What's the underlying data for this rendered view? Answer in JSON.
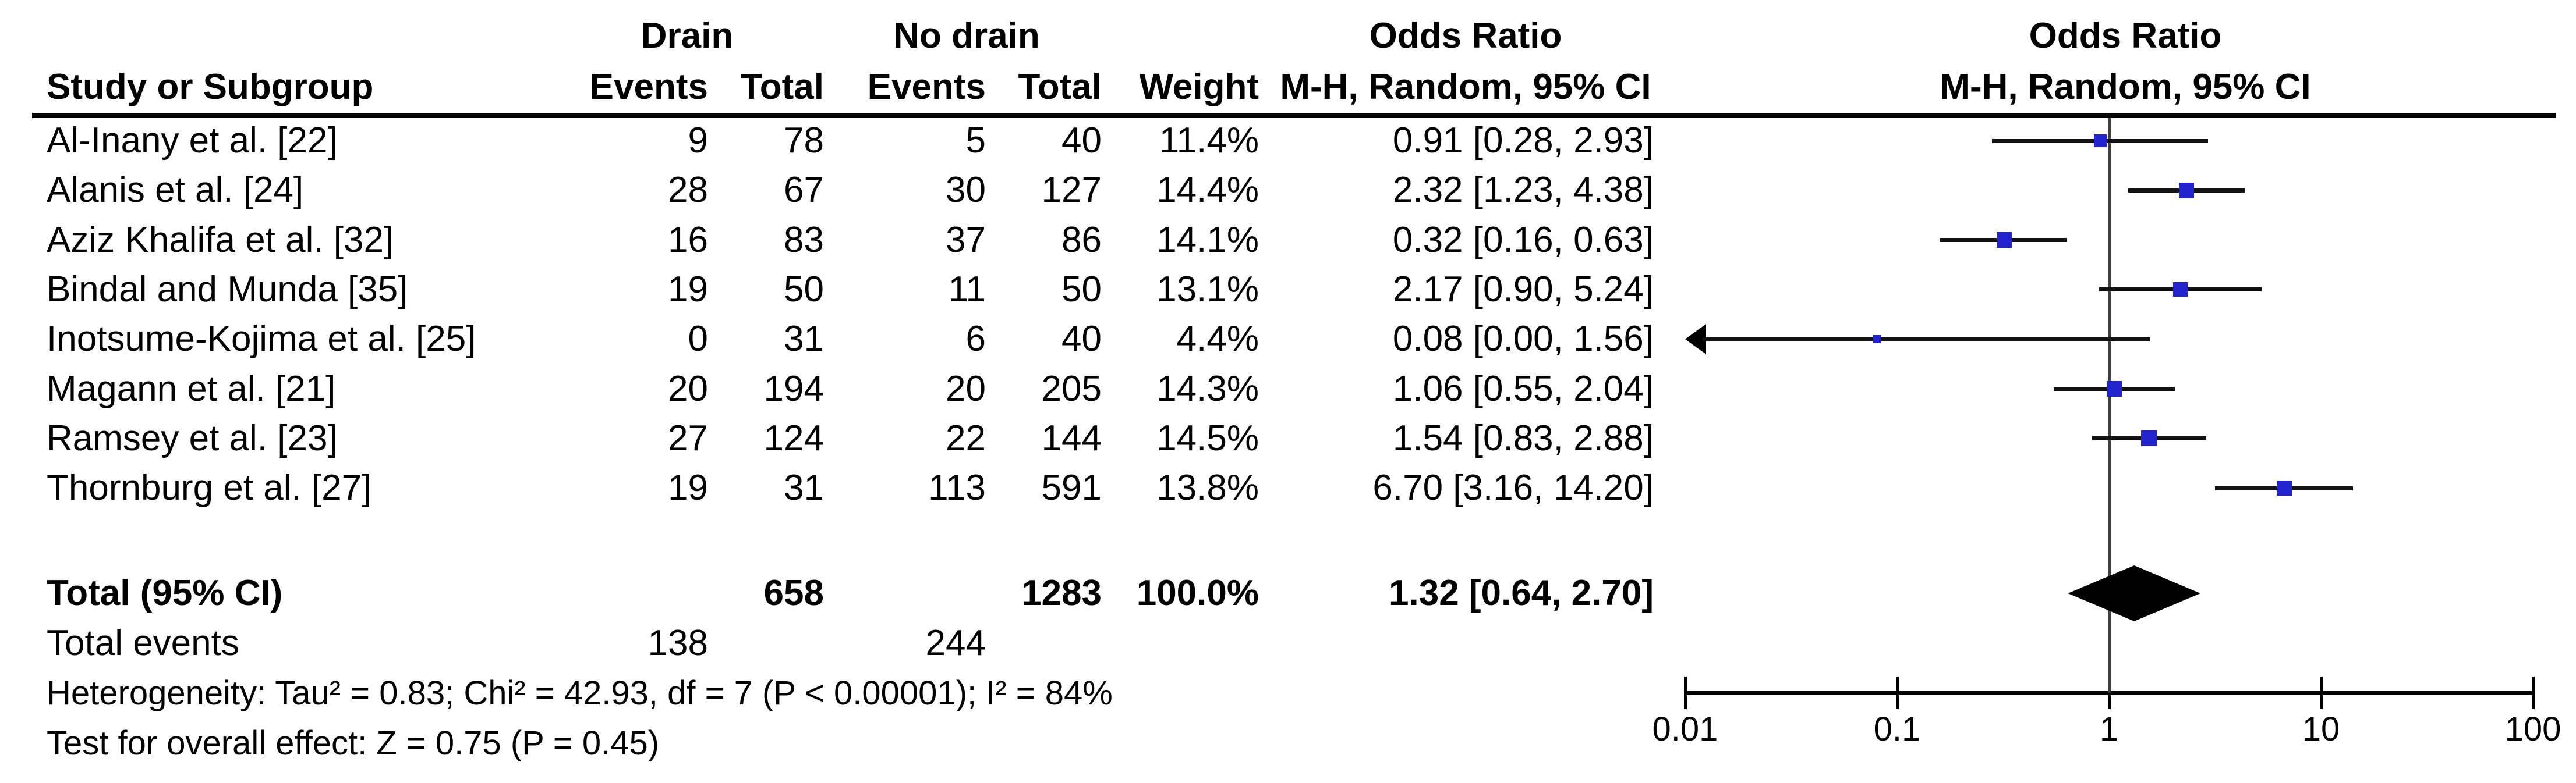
{
  "headers": {
    "study": "Study or Subgroup",
    "group_drain": "Drain",
    "group_nodrain": "No drain",
    "drain_events": "Events",
    "drain_total": "Total",
    "nodrain_events": "Events",
    "nodrain_total": "Total",
    "weight": "Weight",
    "or_title": "Odds Ratio",
    "or_subtitle": "M-H, Random, 95% CI",
    "plot_title": "Odds Ratio",
    "plot_subtitle": "M-H, Random, 95% CI"
  },
  "chart_data": {
    "type": "forest",
    "effect_measure": "Odds Ratio",
    "method": "M-H, Random, 95% CI",
    "x_axis": {
      "scale": "log",
      "range": [
        0.01,
        100
      ],
      "ticks": [
        0.01,
        0.1,
        1,
        10,
        100
      ],
      "tick_labels": [
        "0.01",
        "0.1",
        "1",
        "10",
        "100"
      ],
      "null_line": 1
    },
    "studies": [
      {
        "name": "Al-Inany et al. [22]",
        "drain_events": "9",
        "drain_total": "78",
        "nodrain_events": "5",
        "nodrain_total": "40",
        "weight": "11.4%",
        "weight_pct": 11.4,
        "or_text": "0.91 [0.28, 2.93]",
        "or": 0.91,
        "ci_low": 0.28,
        "ci_high": 2.93,
        "ci_low_offscale": false
      },
      {
        "name": "Alanis et al. [24]",
        "drain_events": "28",
        "drain_total": "67",
        "nodrain_events": "30",
        "nodrain_total": "127",
        "weight": "14.4%",
        "weight_pct": 14.4,
        "or_text": "2.32 [1.23, 4.38]",
        "or": 2.32,
        "ci_low": 1.23,
        "ci_high": 4.38,
        "ci_low_offscale": false
      },
      {
        "name": "Aziz Khalifa et al. [32]",
        "drain_events": "16",
        "drain_total": "83",
        "nodrain_events": "37",
        "nodrain_total": "86",
        "weight": "14.1%",
        "weight_pct": 14.1,
        "or_text": "0.32 [0.16, 0.63]",
        "or": 0.32,
        "ci_low": 0.16,
        "ci_high": 0.63,
        "ci_low_offscale": false
      },
      {
        "name": "Bindal and Munda [35]",
        "drain_events": "19",
        "drain_total": "50",
        "nodrain_events": "11",
        "nodrain_total": "50",
        "weight": "13.1%",
        "weight_pct": 13.1,
        "or_text": "2.17 [0.90, 5.24]",
        "or": 2.17,
        "ci_low": 0.9,
        "ci_high": 5.24,
        "ci_low_offscale": false
      },
      {
        "name": "Inotsume-Kojima et al. [25]",
        "drain_events": "0",
        "drain_total": "31",
        "nodrain_events": "6",
        "nodrain_total": "40",
        "weight": "4.4%",
        "weight_pct": 4.4,
        "or_text": "0.08 [0.00, 1.56]",
        "or": 0.08,
        "ci_low": 0.0,
        "ci_high": 1.56,
        "ci_low_offscale": true
      },
      {
        "name": "Magann et al. [21]",
        "drain_events": "20",
        "drain_total": "194",
        "nodrain_events": "20",
        "nodrain_total": "205",
        "weight": "14.3%",
        "weight_pct": 14.3,
        "or_text": "1.06 [0.55, 2.04]",
        "or": 1.06,
        "ci_low": 0.55,
        "ci_high": 2.04,
        "ci_low_offscale": false
      },
      {
        "name": "Ramsey et al. [23]",
        "drain_events": "27",
        "drain_total": "124",
        "nodrain_events": "22",
        "nodrain_total": "144",
        "weight": "14.5%",
        "weight_pct": 14.5,
        "or_text": "1.54 [0.83, 2.88]",
        "or": 1.54,
        "ci_low": 0.83,
        "ci_high": 2.88,
        "ci_low_offscale": false
      },
      {
        "name": "Thornburg et al. [27]",
        "drain_events": "19",
        "drain_total": "31",
        "nodrain_events": "113",
        "nodrain_total": "591",
        "weight": "13.8%",
        "weight_pct": 13.8,
        "or_text": "6.70 [3.16, 14.20]",
        "or": 6.7,
        "ci_low": 3.16,
        "ci_high": 14.2,
        "ci_low_offscale": false
      }
    ],
    "total": {
      "label": "Total (95% CI)",
      "drain_total": "658",
      "nodrain_total": "1283",
      "weight": "100.0%",
      "or_text": "1.32 [0.64, 2.70]",
      "or": 1.32,
      "ci_low": 0.64,
      "ci_high": 2.7
    },
    "total_events": {
      "label": "Total events",
      "drain": "138",
      "nodrain": "244"
    },
    "heterogeneity": "Heterogeneity: Tau² = 0.83; Chi² = 42.93, df = 7 (P < 0.00001); I² = 84%",
    "overall_effect": "Test for overall effect: Z = 0.75 (P = 0.45)",
    "marker_color": "#2323cd"
  }
}
